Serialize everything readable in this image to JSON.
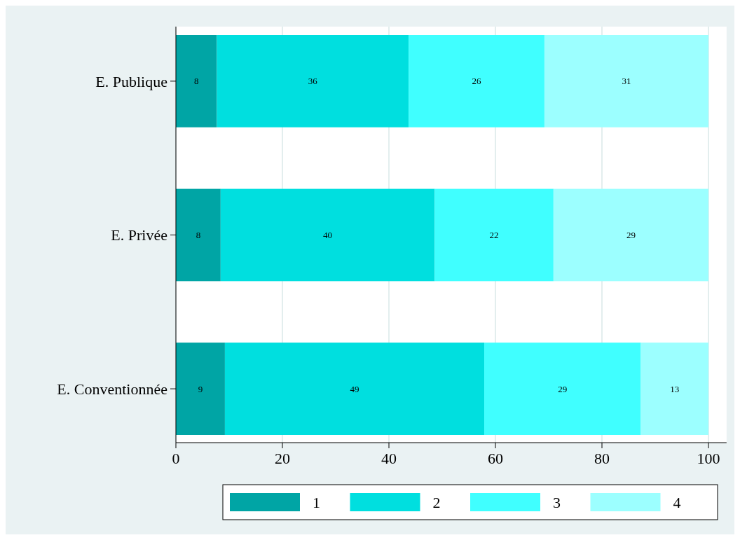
{
  "chart_data": {
    "type": "bar",
    "orientation": "horizontal",
    "stacked": true,
    "categories": [
      "E. Publique",
      "E. Privée",
      "E. Conventionnée"
    ],
    "series": [
      {
        "name": "1",
        "color": "#00a5a5",
        "values": [
          7.7,
          8.4,
          9.2
        ],
        "value_labels": [
          "8",
          "8",
          "9"
        ]
      },
      {
        "name": "2",
        "color": "#00dfdf",
        "values": [
          36.0,
          40.2,
          48.7
        ],
        "value_labels": [
          "36",
          "40",
          "49"
        ]
      },
      {
        "name": "3",
        "color": "#40ffff",
        "values": [
          25.5,
          22.3,
          29.4
        ],
        "value_labels": [
          "26",
          "22",
          "29"
        ]
      },
      {
        "name": "4",
        "color": "#9cffff",
        "values": [
          30.8,
          29.1,
          12.7
        ],
        "value_labels": [
          "31",
          "29",
          "13"
        ]
      }
    ],
    "xlim": [
      0,
      103.4
    ],
    "xticks": [
      0,
      20,
      40,
      60,
      80,
      100
    ],
    "grid": "x",
    "legend": "bottom"
  }
}
